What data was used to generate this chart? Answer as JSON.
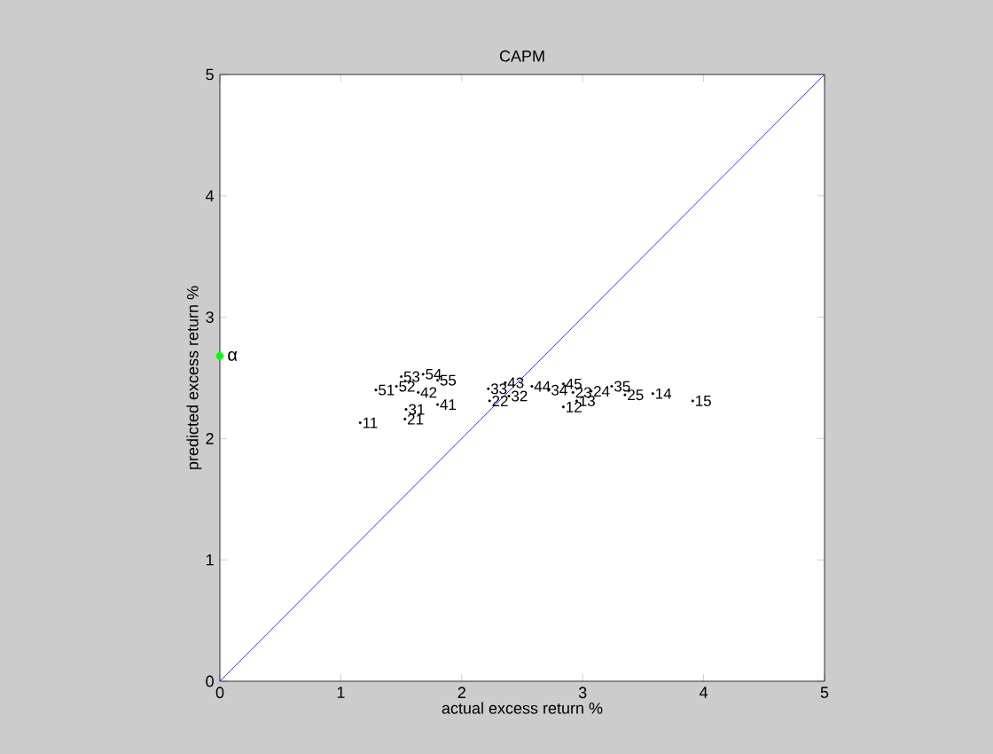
{
  "chart_data": {
    "type": "scatter",
    "title": "CAPM",
    "xlabel": "actual excess return %",
    "ylabel": "predicted excess return %",
    "xlim": [
      0,
      5
    ],
    "ylim": [
      0,
      5
    ],
    "xticks": [
      0,
      1,
      2,
      3,
      4,
      5
    ],
    "yticks": [
      0,
      1,
      2,
      3,
      4,
      5
    ],
    "series": [
      {
        "type": "line",
        "color": "#0000ff",
        "x": [
          0,
          5
        ],
        "values": [
          0,
          5
        ],
        "marker": "none"
      },
      {
        "color": "#000000",
        "marker": "circle",
        "x": [
          1.16,
          2.84,
          2.95,
          3.58,
          3.91,
          1.53,
          2.23,
          2.92,
          3.07,
          3.35,
          1.54,
          2.39,
          2.22,
          2.72,
          3.24,
          1.8,
          1.64,
          2.36,
          2.58,
          2.84,
          1.29,
          1.46,
          1.5,
          1.68,
          1.8
        ],
        "values": [
          2.13,
          2.26,
          2.31,
          2.37,
          2.31,
          2.16,
          2.31,
          2.38,
          2.39,
          2.36,
          2.24,
          2.35,
          2.41,
          2.4,
          2.43,
          2.28,
          2.38,
          2.46,
          2.43,
          2.45,
          2.4,
          2.43,
          2.51,
          2.53,
          2.48
        ]
      },
      {
        "name": "α",
        "color": "#00ff00",
        "marker": "circle",
        "x": [
          0
        ],
        "values": [
          2.68
        ]
      }
    ],
    "annotations": [
      {
        "text": "11",
        "x": 1.16,
        "y": 2.13
      },
      {
        "text": "12",
        "x": 2.84,
        "y": 2.26
      },
      {
        "text": "13",
        "x": 2.95,
        "y": 2.31
      },
      {
        "text": "14",
        "x": 3.58,
        "y": 2.37
      },
      {
        "text": "15",
        "x": 3.91,
        "y": 2.31
      },
      {
        "text": "21",
        "x": 1.53,
        "y": 2.16
      },
      {
        "text": "22",
        "x": 2.23,
        "y": 2.31
      },
      {
        "text": "23",
        "x": 2.92,
        "y": 2.38
      },
      {
        "text": "24",
        "x": 3.07,
        "y": 2.39
      },
      {
        "text": "25",
        "x": 3.35,
        "y": 2.36
      },
      {
        "text": "31",
        "x": 1.54,
        "y": 2.24
      },
      {
        "text": "32",
        "x": 2.39,
        "y": 2.35
      },
      {
        "text": "33",
        "x": 2.22,
        "y": 2.41
      },
      {
        "text": "34",
        "x": 2.72,
        "y": 2.4
      },
      {
        "text": "35",
        "x": 3.24,
        "y": 2.43
      },
      {
        "text": "41",
        "x": 1.8,
        "y": 2.28
      },
      {
        "text": "42",
        "x": 1.64,
        "y": 2.38
      },
      {
        "text": "43",
        "x": 2.36,
        "y": 2.46
      },
      {
        "text": "44",
        "x": 2.58,
        "y": 2.43
      },
      {
        "text": "45",
        "x": 2.84,
        "y": 2.45
      },
      {
        "text": "51",
        "x": 1.29,
        "y": 2.4
      },
      {
        "text": "52",
        "x": 1.46,
        "y": 2.43
      },
      {
        "text": "53",
        "x": 1.5,
        "y": 2.51
      },
      {
        "text": "54",
        "x": 1.68,
        "y": 2.53
      },
      {
        "text": "55",
        "x": 1.8,
        "y": 2.48
      }
    ]
  }
}
